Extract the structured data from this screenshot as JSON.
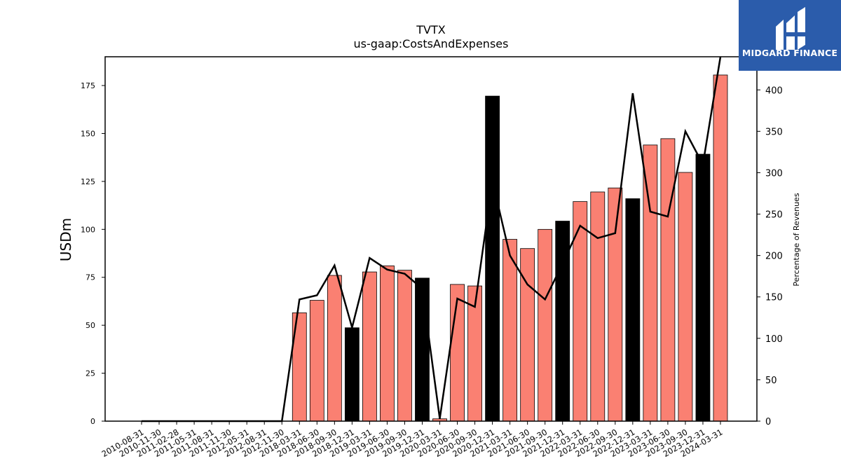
{
  "logo": {
    "text": "MIDGARD FINANCE",
    "background": "#2b5cab"
  },
  "chart_data": {
    "type": "bar",
    "title": "TVTX",
    "subtitle": "us-gaap:CostsAndExpenses",
    "ylabel": "USDm",
    "y2label": "Percentage of Revenues",
    "ylim": [
      0,
      190
    ],
    "y2lim": [
      0,
      440
    ],
    "yticks": [
      0,
      25,
      50,
      75,
      100,
      125,
      150,
      175
    ],
    "y2ticks": [
      0,
      50,
      100,
      150,
      200,
      250,
      300,
      350,
      400
    ],
    "categories": [
      "2010-08-31",
      "2010-11-30",
      "2011-02-28",
      "2011-05-31",
      "2011-08-31",
      "2011-11-30",
      "2012-05-31",
      "2012-08-31",
      "2012-11-30",
      "2018-03-31",
      "2018-06-30",
      "2018-09-30",
      "2018-12-31",
      "2019-03-31",
      "2019-06-30",
      "2019-09-30",
      "2019-12-31",
      "2020-03-31",
      "2020-06-30",
      "2020-09-30",
      "2020-12-31",
      "2021-03-31",
      "2021-06-30",
      "2021-09-30",
      "2021-12-31",
      "2022-03-31",
      "2022-06-30",
      "2022-09-30",
      "2022-12-31",
      "2023-03-31",
      "2023-06-30",
      "2023-09-30",
      "2023-12-31",
      "2024-03-31"
    ],
    "series": [
      {
        "type": "bar",
        "values": [
          0,
          0,
          0,
          0,
          0,
          0,
          0,
          0,
          0,
          56.5,
          63,
          76,
          48.7,
          77.8,
          81,
          78.7,
          74.6,
          1.2,
          71.3,
          70.5,
          169.5,
          94.8,
          90,
          100,
          104.3,
          114.5,
          119.5,
          121.6,
          116,
          144,
          147.3,
          129.7,
          139.2,
          180.5
        ],
        "colors": [
          "salmon",
          "salmon",
          "salmon",
          "salmon",
          "salmon",
          "salmon",
          "salmon",
          "salmon",
          "salmon",
          "salmon",
          "salmon",
          "salmon",
          "black",
          "salmon",
          "salmon",
          "salmon",
          "black",
          "salmon",
          "salmon",
          "salmon",
          "black",
          "salmon",
          "salmon",
          "salmon",
          "black",
          "salmon",
          "salmon",
          "salmon",
          "black",
          "salmon",
          "salmon",
          "salmon",
          "black",
          "salmon"
        ]
      },
      {
        "type": "line",
        "axis": "right",
        "values": [
          0,
          0,
          0,
          0,
          0,
          0,
          0,
          0,
          0,
          147,
          152,
          188,
          113,
          197,
          183,
          178,
          160,
          3,
          148,
          138,
          290,
          200,
          165,
          147,
          190,
          236,
          221,
          227,
          396,
          253,
          247,
          350,
          310,
          440
        ]
      }
    ],
    "colors": {
      "salmon": "#fa8072",
      "black": "#000000",
      "line": "#000000"
    }
  }
}
